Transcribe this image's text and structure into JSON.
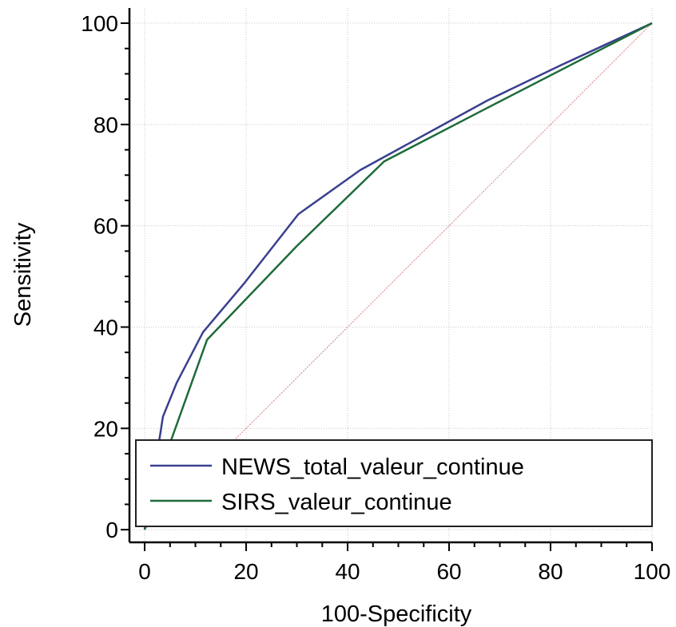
{
  "chart_data": {
    "type": "line",
    "title": "",
    "xlabel": "100-Specificity",
    "ylabel": "Sensitivity",
    "xlim": [
      -3,
      100
    ],
    "ylim": [
      -2.5,
      103
    ],
    "xticks": [
      0,
      20,
      40,
      60,
      80,
      100
    ],
    "yticks": [
      0,
      20,
      40,
      60,
      80,
      100
    ],
    "grid": true,
    "legend_position": "bottom",
    "reference_line": {
      "x": [
        0,
        100
      ],
      "y": [
        0,
        100
      ],
      "color": "#d08080"
    },
    "series": [
      {
        "name": "NEWS_total_valeur_continue",
        "color": "#3a3f8f",
        "x": [
          0,
          2.7,
          3.6,
          6.3,
          11.5,
          19.5,
          30.3,
          42.5,
          58.0,
          67.5,
          82.0,
          100
        ],
        "y": [
          0,
          16.5,
          22.3,
          29.0,
          39.0,
          48.5,
          62.3,
          71.0,
          79.5,
          84.7,
          91.7,
          100
        ]
      },
      {
        "name": "SIRS_valeur_continue",
        "color": "#1e6b3a",
        "x": [
          0,
          4.8,
          12.3,
          30.0,
          47.2,
          67.0,
          100
        ],
        "y": [
          0,
          16.5,
          37.5,
          56.0,
          72.7,
          83.0,
          100
        ]
      }
    ]
  }
}
